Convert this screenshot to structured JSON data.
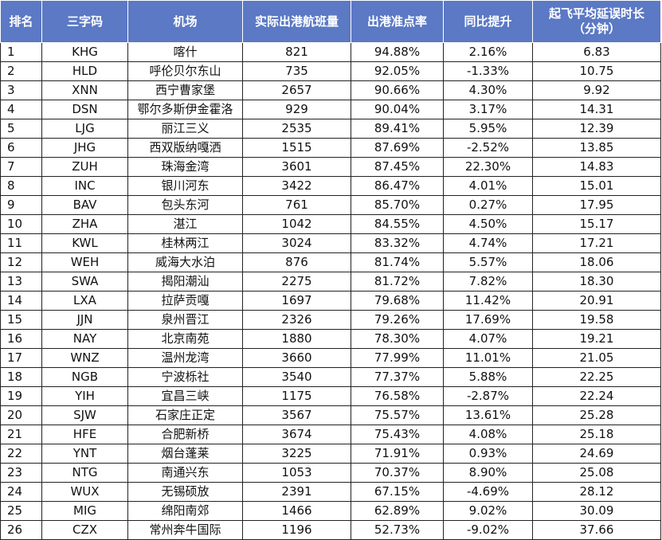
{
  "headers": {
    "rank": "排名",
    "code": "三字码",
    "airport": "机场",
    "flights": "实际出港航班量",
    "ontime": "出港准点率",
    "yoy": "同比提升",
    "delay_line1": "起飞平均延误时长",
    "delay_line2": "（分钟）"
  },
  "rows": [
    {
      "rank": "1",
      "code": "KHG",
      "airport": "喀什",
      "flights": "821",
      "ontime": "94.88%",
      "yoy": "2.16%",
      "delay": "6.83"
    },
    {
      "rank": "2",
      "code": "HLD",
      "airport": "呼伦贝尔东山",
      "flights": "735",
      "ontime": "92.05%",
      "yoy": "-1.33%",
      "delay": "10.75"
    },
    {
      "rank": "3",
      "code": "XNN",
      "airport": "西宁曹家堡",
      "flights": "2657",
      "ontime": "90.66%",
      "yoy": "4.30%",
      "delay": "9.92"
    },
    {
      "rank": "4",
      "code": "DSN",
      "airport": "鄂尔多斯伊金霍洛",
      "flights": "929",
      "ontime": "90.04%",
      "yoy": "3.17%",
      "delay": "14.31"
    },
    {
      "rank": "5",
      "code": "LJG",
      "airport": "丽江三义",
      "flights": "2535",
      "ontime": "89.41%",
      "yoy": "5.95%",
      "delay": "12.39"
    },
    {
      "rank": "6",
      "code": "JHG",
      "airport": "西双版纳嘎洒",
      "flights": "1515",
      "ontime": "87.69%",
      "yoy": "-2.52%",
      "delay": "13.85"
    },
    {
      "rank": "7",
      "code": "ZUH",
      "airport": "珠海金湾",
      "flights": "3601",
      "ontime": "87.45%",
      "yoy": "22.30%",
      "delay": "14.83"
    },
    {
      "rank": "8",
      "code": "INC",
      "airport": "银川河东",
      "flights": "3422",
      "ontime": "86.47%",
      "yoy": "4.01%",
      "delay": "15.01"
    },
    {
      "rank": "9",
      "code": "BAV",
      "airport": "包头东河",
      "flights": "761",
      "ontime": "85.70%",
      "yoy": "0.27%",
      "delay": "17.95"
    },
    {
      "rank": "10",
      "code": "ZHA",
      "airport": "湛江",
      "flights": "1042",
      "ontime": "84.55%",
      "yoy": "4.50%",
      "delay": "15.17"
    },
    {
      "rank": "11",
      "code": "KWL",
      "airport": "桂林两江",
      "flights": "3024",
      "ontime": "83.32%",
      "yoy": "4.74%",
      "delay": "17.21"
    },
    {
      "rank": "12",
      "code": "WEH",
      "airport": "威海大水泊",
      "flights": "876",
      "ontime": "81.74%",
      "yoy": "5.57%",
      "delay": "18.06"
    },
    {
      "rank": "13",
      "code": "SWA",
      "airport": "揭阳潮汕",
      "flights": "2275",
      "ontime": "81.72%",
      "yoy": "7.82%",
      "delay": "18.30"
    },
    {
      "rank": "14",
      "code": "LXA",
      "airport": "拉萨贡嘎",
      "flights": "1697",
      "ontime": "79.68%",
      "yoy": "11.42%",
      "delay": "20.91"
    },
    {
      "rank": "15",
      "code": "JJN",
      "airport": "泉州晋江",
      "flights": "2326",
      "ontime": "79.26%",
      "yoy": "17.69%",
      "delay": "19.58"
    },
    {
      "rank": "16",
      "code": "NAY",
      "airport": "北京南苑",
      "flights": "1880",
      "ontime": "78.30%",
      "yoy": "4.07%",
      "delay": "19.21"
    },
    {
      "rank": "17",
      "code": "WNZ",
      "airport": "温州龙湾",
      "flights": "3660",
      "ontime": "77.99%",
      "yoy": "11.01%",
      "delay": "21.05"
    },
    {
      "rank": "18",
      "code": "NGB",
      "airport": "宁波栎社",
      "flights": "3540",
      "ontime": "77.37%",
      "yoy": "5.88%",
      "delay": "22.25"
    },
    {
      "rank": "19",
      "code": "YIH",
      "airport": "宜昌三峡",
      "flights": "1175",
      "ontime": "76.58%",
      "yoy": "-2.87%",
      "delay": "22.24"
    },
    {
      "rank": "20",
      "code": "SJW",
      "airport": "石家庄正定",
      "flights": "3567",
      "ontime": "75.57%",
      "yoy": "13.61%",
      "delay": "25.28"
    },
    {
      "rank": "21",
      "code": "HFE",
      "airport": "合肥新桥",
      "flights": "3674",
      "ontime": "75.43%",
      "yoy": "4.08%",
      "delay": "25.18"
    },
    {
      "rank": "22",
      "code": "YNT",
      "airport": "烟台蓬莱",
      "flights": "3225",
      "ontime": "71.91%",
      "yoy": "0.93%",
      "delay": "24.69"
    },
    {
      "rank": "23",
      "code": "NTG",
      "airport": "南通兴东",
      "flights": "1053",
      "ontime": "70.37%",
      "yoy": "8.90%",
      "delay": "25.08"
    },
    {
      "rank": "24",
      "code": "WUX",
      "airport": "无锡硕放",
      "flights": "2391",
      "ontime": "67.15%",
      "yoy": "-4.69%",
      "delay": "28.12"
    },
    {
      "rank": "25",
      "code": "MIG",
      "airport": "绵阳南郊",
      "flights": "1466",
      "ontime": "62.89%",
      "yoy": "9.02%",
      "delay": "30.09"
    },
    {
      "rank": "26",
      "code": "CZX",
      "airport": "常州奔牛国际",
      "flights": "1196",
      "ontime": "52.73%",
      "yoy": "-9.02%",
      "delay": "37.66"
    }
  ]
}
